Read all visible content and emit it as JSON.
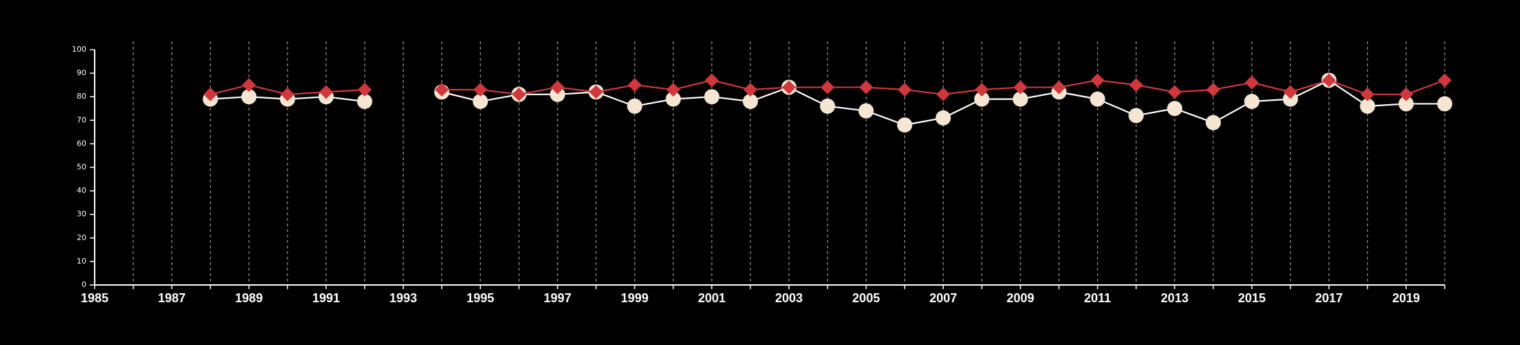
{
  "chart_data": {
    "type": "line",
    "title": "",
    "xlabel": "",
    "ylabel": "",
    "xlim": [
      1985,
      2020
    ],
    "ylim": [
      0,
      100
    ],
    "x_ticks": [
      1985,
      1987,
      1989,
      1991,
      1993,
      1995,
      1997,
      1999,
      2001,
      2003,
      2005,
      2007,
      2009,
      2011,
      2013,
      2015,
      2017,
      2019
    ],
    "y_ticks": [
      0,
      10,
      20,
      30,
      40,
      50,
      60,
      70,
      80,
      90,
      100
    ],
    "gridlines": "vertical-dashed",
    "x": [
      1988,
      1989,
      1990,
      1991,
      1992,
      1994,
      1995,
      1996,
      1997,
      1998,
      1999,
      2000,
      2001,
      2002,
      2003,
      2004,
      2005,
      2006,
      2007,
      2008,
      2009,
      2010,
      2011,
      2012,
      2013,
      2014,
      2015,
      2016,
      2017,
      2018,
      2019,
      2020
    ],
    "series": [
      {
        "marker": "circle",
        "color": "#f5e6d3",
        "line_color": "#ffffff",
        "values": [
          79,
          80,
          79,
          80,
          78,
          82,
          78,
          81,
          81,
          82,
          76,
          79,
          80,
          78,
          84,
          76,
          74,
          68,
          71,
          79,
          79,
          82,
          79,
          72,
          75,
          69,
          78,
          79,
          87,
          76,
          77,
          77
        ]
      },
      {
        "marker": "diamond",
        "color": "#d0383d",
        "line_color": "#d0383d",
        "values": [
          81,
          85,
          81,
          82,
          83,
          83,
          83,
          81,
          84,
          82,
          85,
          83,
          87,
          83,
          84,
          84,
          84,
          83,
          81,
          83,
          84,
          84,
          87,
          85,
          82,
          83,
          86,
          82,
          87,
          81,
          81,
          87
        ]
      }
    ]
  }
}
